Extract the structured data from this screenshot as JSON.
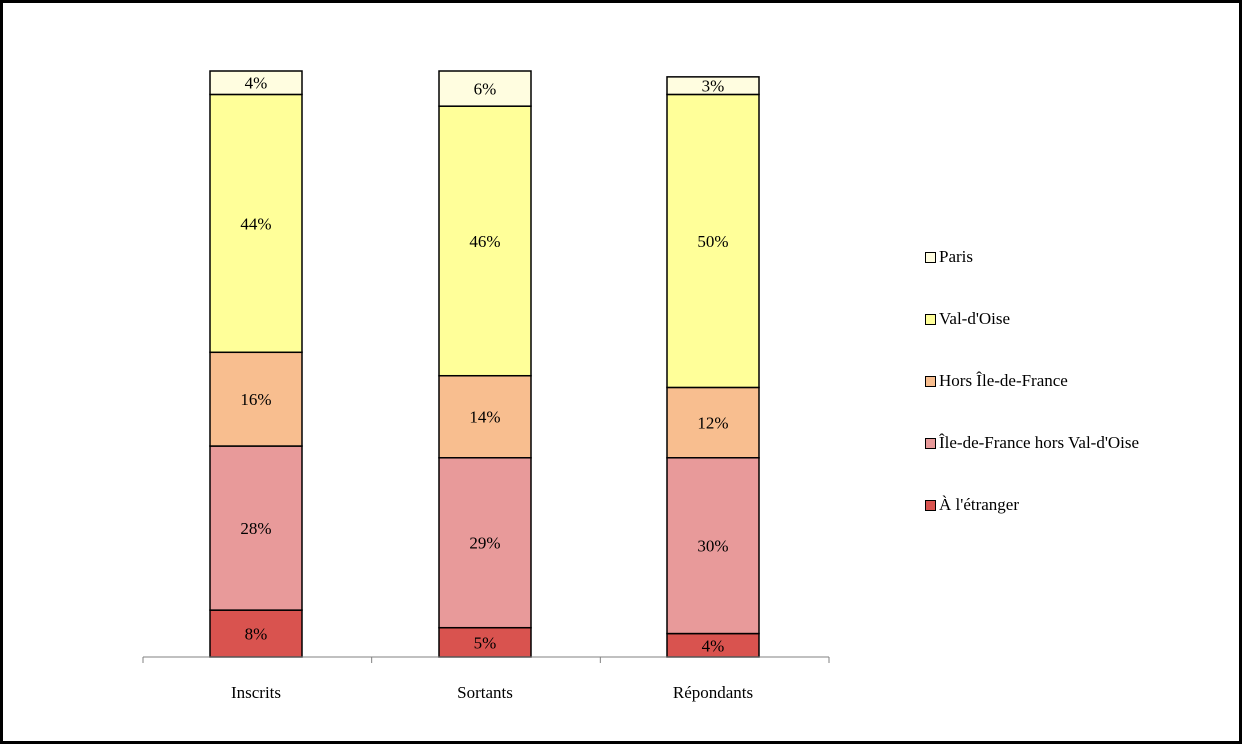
{
  "chart_data": {
    "type": "bar",
    "stacked": true,
    "percent": true,
    "categories": [
      "Inscrits",
      "Sortants",
      "Répondants"
    ],
    "ylim": [
      0,
      100
    ],
    "series": [
      {
        "name": "À l'étranger",
        "color": "#d9534f",
        "values": [
          8,
          5,
          4
        ],
        "labels": [
          "8%",
          "5%",
          "4%"
        ]
      },
      {
        "name": "Île-de-France hors Val-d'Oise",
        "color": "#e89a9a",
        "values": [
          28,
          29,
          30
        ],
        "labels": [
          "28%",
          "29%",
          "30%"
        ]
      },
      {
        "name": "Hors Île-de-France",
        "color": "#f8be8f",
        "values": [
          16,
          14,
          12
        ],
        "labels": [
          "16%",
          "14%",
          "12%"
        ]
      },
      {
        "name": "Val-d'Oise",
        "color": "#ffff99",
        "values": [
          44,
          46,
          50
        ],
        "labels": [
          "44%",
          "46%",
          "50%"
        ]
      },
      {
        "name": "Paris",
        "color": "#fffde0",
        "values": [
          4,
          6,
          3
        ],
        "labels": [
          "4%",
          "6%",
          "3%"
        ]
      }
    ],
    "legend_order": [
      "Paris",
      "Val-d'Oise",
      "Hors Île-de-France",
      "Île-de-France hors Val-d'Oise",
      "À l'étranger"
    ],
    "legend_position": "right",
    "grid": false
  }
}
